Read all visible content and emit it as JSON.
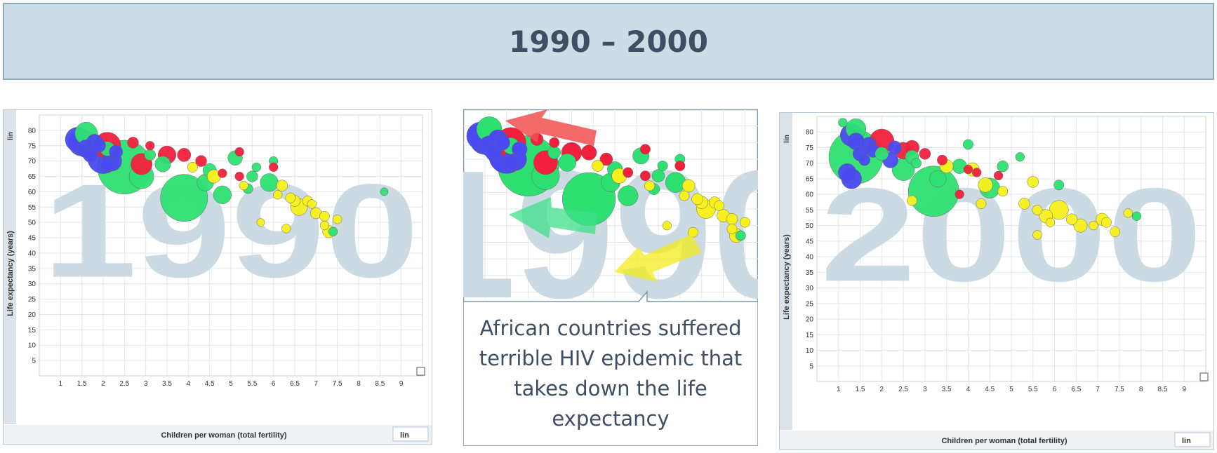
{
  "title": "1990 – 2000",
  "callout_text": "African countries suffered terrible HIV epidemic that takes down the life expectancy",
  "chart_data": [
    {
      "type": "scatter",
      "watermark": "1990",
      "xlabel": "Children per woman (total fertility)",
      "ylabel": "Life expectancy (years)",
      "xscale_label": "lin",
      "yscale_label": "lin",
      "xlim": [
        0.5,
        9.5
      ],
      "ylim": [
        0,
        85
      ],
      "xticks": [
        "1",
        "1.5",
        "2",
        "2.5",
        "3",
        "3.5",
        "4",
        "4.5",
        "5",
        "5.5",
        "6",
        "6.5",
        "7",
        "7.5",
        "8",
        "8.5",
        "9"
      ],
      "yticks": [
        "5",
        "10",
        "15",
        "20",
        "25",
        "30",
        "35",
        "40",
        "45",
        "50",
        "55",
        "60",
        "65",
        "70",
        "75",
        "80"
      ],
      "points": [
        [
          1.4,
          77,
          "blue",
          2.2
        ],
        [
          1.5,
          76,
          "blue",
          2.4
        ],
        [
          1.6,
          74,
          "blue",
          1.6
        ],
        [
          1.8,
          76,
          "blue",
          1.5
        ],
        [
          1.9,
          75,
          "blue",
          1.2
        ],
        [
          2.0,
          71,
          "blue",
          2.8
        ],
        [
          1.7,
          72,
          "blue",
          1.3
        ],
        [
          2.3,
          73,
          "blue",
          1.2
        ],
        [
          2.2,
          70,
          "blue",
          1.8
        ],
        [
          2.1,
          69,
          "blue",
          1.2
        ],
        [
          1.6,
          79,
          "green",
          2.0
        ],
        [
          2.1,
          74,
          "green",
          1.3
        ],
        [
          2.5,
          68,
          "green",
          4.8
        ],
        [
          2.9,
          65,
          "green",
          2.2
        ],
        [
          3.4,
          69,
          "green",
          1.4
        ],
        [
          3.9,
          58,
          "green",
          4.2
        ],
        [
          4.4,
          63,
          "green",
          1.5
        ],
        [
          4.5,
          67,
          "green",
          1.2
        ],
        [
          4.8,
          59,
          "green",
          1.6
        ],
        [
          5.5,
          65,
          "green",
          1.0
        ],
        [
          5.1,
          71,
          "green",
          1.3
        ],
        [
          5.9,
          63,
          "green",
          1.6
        ],
        [
          6.0,
          70,
          "green",
          0.8
        ],
        [
          7.4,
          47,
          "green",
          0.8
        ],
        [
          8.6,
          60,
          "green",
          0.7
        ],
        [
          3.1,
          72,
          "green",
          1.0
        ],
        [
          5.6,
          68,
          "green",
          0.8
        ],
        [
          5.4,
          61,
          "green",
          0.9
        ],
        [
          2.1,
          75,
          "red",
          2.4
        ],
        [
          2.9,
          69,
          "red",
          1.9
        ],
        [
          3.5,
          72,
          "red",
          1.6
        ],
        [
          3.9,
          72,
          "red",
          1.2
        ],
        [
          4.3,
          70,
          "red",
          1.0
        ],
        [
          3.1,
          75,
          "red",
          0.8
        ],
        [
          4.8,
          66,
          "red",
          0.8
        ],
        [
          5.2,
          65,
          "red",
          0.8
        ],
        [
          6.0,
          68,
          "red",
          0.8
        ],
        [
          5.2,
          73,
          "red",
          0.8
        ],
        [
          2.7,
          76,
          "red",
          1.0
        ],
        [
          4.6,
          65,
          "yellow",
          1.2
        ],
        [
          6.2,
          62,
          "yellow",
          1.0
        ],
        [
          6.4,
          58,
          "yellow",
          0.9
        ],
        [
          6.6,
          55,
          "yellow",
          1.5
        ],
        [
          6.8,
          57,
          "yellow",
          0.9
        ],
        [
          7.0,
          53,
          "yellow",
          1.0
        ],
        [
          7.2,
          52,
          "yellow",
          0.9
        ],
        [
          7.3,
          47,
          "yellow",
          1.1
        ],
        [
          7.2,
          49,
          "yellow",
          0.8
        ],
        [
          6.9,
          56,
          "yellow",
          0.8
        ],
        [
          5.7,
          50,
          "yellow",
          0.7
        ],
        [
          6.3,
          48,
          "yellow",
          0.8
        ],
        [
          7.5,
          51,
          "yellow",
          0.8
        ],
        [
          6.1,
          59,
          "yellow",
          0.8
        ],
        [
          4.1,
          68,
          "yellow",
          0.9
        ],
        [
          5.3,
          62,
          "yellow",
          0.8
        ],
        [
          6.5,
          57,
          "yellow",
          1.0
        ]
      ]
    },
    {
      "type": "scatter",
      "watermark": "2000",
      "xlabel": "Children per woman (total fertility)",
      "ylabel": "Life expectancy (years)",
      "xscale_label": "lin",
      "yscale_label": "lin",
      "xlim": [
        0.5,
        9.5
      ],
      "ylim": [
        0,
        85
      ],
      "xticks": [
        "1",
        "1.5",
        "2",
        "2.5",
        "3",
        "3.5",
        "4",
        "4.5",
        "5",
        "5.5",
        "6",
        "6.5",
        "7",
        "7.5",
        "8",
        "8.5",
        "9"
      ],
      "yticks": [
        "5",
        "10",
        "15",
        "20",
        "25",
        "30",
        "35",
        "40",
        "45",
        "50",
        "55",
        "60",
        "65",
        "70",
        "75",
        "80"
      ],
      "points": [
        [
          1.3,
          79,
          "blue",
          2.0
        ],
        [
          1.4,
          77,
          "blue",
          1.5
        ],
        [
          1.2,
          67,
          "blue",
          1.6
        ],
        [
          1.3,
          65,
          "blue",
          1.8
        ],
        [
          1.5,
          73,
          "blue",
          1.3
        ],
        [
          1.7,
          76,
          "blue",
          1.3
        ],
        [
          1.6,
          71,
          "blue",
          1.0
        ],
        [
          1.8,
          74,
          "blue",
          1.2
        ],
        [
          2.3,
          75,
          "blue",
          1.2
        ],
        [
          2.2,
          71,
          "blue",
          1.4
        ],
        [
          1.4,
          81,
          "green",
          1.8
        ],
        [
          1.4,
          72,
          "green",
          4.8
        ],
        [
          2.0,
          73,
          "green",
          1.2
        ],
        [
          2.5,
          68,
          "green",
          2.0
        ],
        [
          2.7,
          72,
          "green",
          1.2
        ],
        [
          3.2,
          61,
          "green",
          4.5
        ],
        [
          3.3,
          65,
          "green",
          1.5
        ],
        [
          3.8,
          69,
          "green",
          1.3
        ],
        [
          4.0,
          76,
          "green",
          0.9
        ],
        [
          4.5,
          62,
          "green",
          1.8
        ],
        [
          4.8,
          69,
          "green",
          1.0
        ],
        [
          5.2,
          72,
          "green",
          0.8
        ],
        [
          6.1,
          63,
          "green",
          0.9
        ],
        [
          7.9,
          53,
          "green",
          0.8
        ],
        [
          1.1,
          83,
          "green",
          0.8
        ],
        [
          2.8,
          70,
          "green",
          0.9
        ],
        [
          2.0,
          77,
          "red",
          2.2
        ],
        [
          2.5,
          74,
          "red",
          1.5
        ],
        [
          2.7,
          75,
          "red",
          1.3
        ],
        [
          3.0,
          73,
          "red",
          1.0
        ],
        [
          3.4,
          71,
          "red",
          0.9
        ],
        [
          4.0,
          68,
          "red",
          0.8
        ],
        [
          4.2,
          67,
          "red",
          0.8
        ],
        [
          4.7,
          66,
          "red",
          0.8
        ],
        [
          3.8,
          60,
          "red",
          0.8
        ],
        [
          3.5,
          69,
          "yellow",
          1.2
        ],
        [
          4.1,
          68,
          "yellow",
          1.2
        ],
        [
          4.4,
          63,
          "yellow",
          1.3
        ],
        [
          4.8,
          61,
          "yellow",
          0.9
        ],
        [
          5.3,
          57,
          "yellow",
          1.0
        ],
        [
          5.5,
          64,
          "yellow",
          1.0
        ],
        [
          5.6,
          55,
          "yellow",
          0.9
        ],
        [
          5.8,
          53,
          "yellow",
          1.2
        ],
        [
          6.1,
          55,
          "yellow",
          1.7
        ],
        [
          6.4,
          52,
          "yellow",
          1.0
        ],
        [
          6.6,
          50,
          "yellow",
          1.2
        ],
        [
          7.1,
          52,
          "yellow",
          1.1
        ],
        [
          7.4,
          48,
          "yellow",
          0.9
        ],
        [
          7.7,
          54,
          "yellow",
          0.8
        ],
        [
          7.2,
          51,
          "yellow",
          0.9
        ],
        [
          5.6,
          47,
          "yellow",
          0.8
        ],
        [
          6.9,
          50,
          "yellow",
          0.8
        ],
        [
          5.9,
          51,
          "yellow",
          0.8
        ],
        [
          4.3,
          57,
          "yellow",
          0.9
        ],
        [
          2.7,
          58,
          "yellow",
          0.9
        ]
      ]
    }
  ],
  "colors": {
    "blue": "#4a4af2",
    "green": "#2ee072",
    "red": "#f2203c",
    "yellow": "#f7f01c",
    "watermark": "#ccdae4",
    "grid": "#e2e6ea",
    "frame": "#b9cad6",
    "ui": "#dbe2e8"
  }
}
